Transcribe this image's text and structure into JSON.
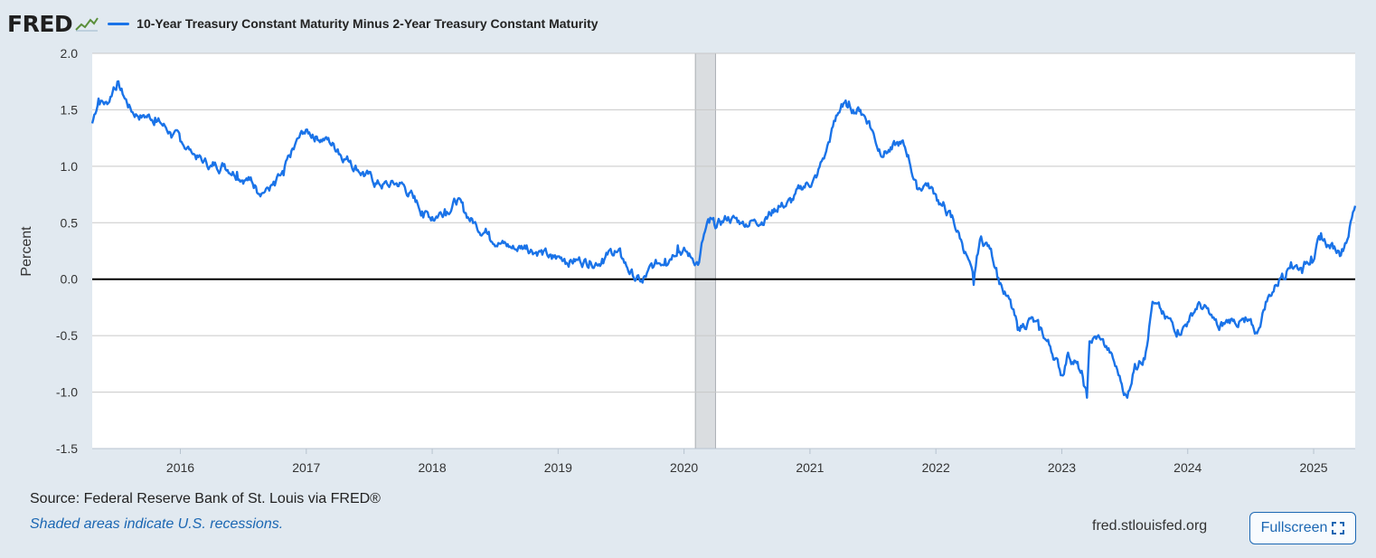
{
  "brand": {
    "logo_text": "FRED"
  },
  "legend": {
    "series_label": "10-Year Treasury Constant Maturity Minus 2-Year Treasury Constant Maturity"
  },
  "colors": {
    "series": "#1a73e8",
    "zero_line": "#000000",
    "recession": "#dadde0",
    "grid": "#c8c8c8",
    "background": "#e1e9f0",
    "link": "#1b67b3"
  },
  "footer": {
    "source": "Source: Federal Reserve Bank of St. Louis via FRED®",
    "recession_note": "Shaded areas indicate U.S. recessions.",
    "site": "fred.stlouisfed.org",
    "fullscreen_label": "Fullscreen"
  },
  "chart_data": {
    "type": "line",
    "ylabel": "Percent",
    "xlim": [
      2015.3,
      2025.33
    ],
    "ylim": [
      -1.5,
      2.0
    ],
    "x_ticks": [
      2016,
      2017,
      2018,
      2019,
      2020,
      2021,
      2022,
      2023,
      2024,
      2025
    ],
    "x_tick_labels": [
      "2016",
      "2017",
      "2018",
      "2019",
      "2020",
      "2021",
      "2022",
      "2023",
      "2024",
      "2025"
    ],
    "y_ticks": [
      -1.5,
      -1.0,
      -0.5,
      0.0,
      0.5,
      1.0,
      1.5,
      2.0
    ],
    "y_tick_labels": [
      "-1.5",
      "-1.0",
      "-0.5",
      "0.0",
      "0.5",
      "1.0",
      "1.5",
      "2.0"
    ],
    "grid": true,
    "zero_line": true,
    "recessions": [
      [
        2020.09,
        2020.25
      ]
    ],
    "series": [
      {
        "name": "10-Year Treasury Constant Maturity Minus 2-Year Treasury Constant Maturity",
        "x": [
          2015.3,
          2015.35,
          2015.42,
          2015.47,
          2015.5,
          2015.55,
          2015.62,
          2015.7,
          2015.8,
          2015.92,
          2016.0,
          2016.08,
          2016.17,
          2016.25,
          2016.35,
          2016.45,
          2016.55,
          2016.6,
          2016.68,
          2016.75,
          2016.82,
          2016.9,
          2016.98,
          2017.05,
          2017.15,
          2017.25,
          2017.35,
          2017.45,
          2017.55,
          2017.65,
          2017.75,
          2017.85,
          2017.92,
          2018.0,
          2018.1,
          2018.2,
          2018.25,
          2018.35,
          2018.45,
          2018.55,
          2018.65,
          2018.75,
          2018.85,
          2018.95,
          2019.05,
          2019.15,
          2019.25,
          2019.35,
          2019.45,
          2019.5,
          2019.55,
          2019.62,
          2019.67,
          2019.75,
          2019.85,
          2019.95,
          2020.05,
          2020.12,
          2020.15,
          2020.2,
          2020.25,
          2020.35,
          2020.45,
          2020.55,
          2020.65,
          2020.75,
          2020.85,
          2020.95,
          2021.05,
          2021.12,
          2021.2,
          2021.25,
          2021.3,
          2021.4,
          2021.47,
          2021.55,
          2021.65,
          2021.72,
          2021.78,
          2021.85,
          2021.92,
          2022.0,
          2022.05,
          2022.12,
          2022.2,
          2022.25,
          2022.3,
          2022.35,
          2022.42,
          2022.48,
          2022.52,
          2022.6,
          2022.65,
          2022.75,
          2022.82,
          2022.9,
          2022.95,
          2023.0,
          2023.05,
          2023.1,
          2023.15,
          2023.2,
          2023.22,
          2023.3,
          2023.38,
          2023.45,
          2023.52,
          2023.58,
          2023.65,
          2023.72,
          2023.82,
          2023.92,
          2024.0,
          2024.08,
          2024.17,
          2024.25,
          2024.35,
          2024.45,
          2024.55,
          2024.62,
          2024.7,
          2024.75,
          2024.82,
          2024.9,
          2024.98,
          2025.05,
          2025.12,
          2025.2,
          2025.25,
          2025.33
        ],
        "y": [
          1.38,
          1.6,
          1.55,
          1.7,
          1.75,
          1.62,
          1.48,
          1.45,
          1.43,
          1.3,
          1.22,
          1.15,
          1.05,
          1.0,
          1.02,
          0.95,
          0.88,
          0.82,
          0.8,
          0.83,
          0.92,
          1.15,
          1.3,
          1.28,
          1.25,
          1.15,
          1.05,
          0.95,
          0.85,
          0.83,
          0.85,
          0.72,
          0.6,
          0.55,
          0.62,
          0.7,
          0.6,
          0.48,
          0.42,
          0.32,
          0.27,
          0.3,
          0.25,
          0.18,
          0.18,
          0.17,
          0.16,
          0.18,
          0.25,
          0.2,
          0.1,
          0.0,
          -0.03,
          0.1,
          0.18,
          0.3,
          0.2,
          0.15,
          0.35,
          0.5,
          0.45,
          0.55,
          0.5,
          0.52,
          0.55,
          0.65,
          0.68,
          0.82,
          0.9,
          1.1,
          1.4,
          1.55,
          1.52,
          1.5,
          1.4,
          1.15,
          1.15,
          1.2,
          1.1,
          0.8,
          0.85,
          0.75,
          0.65,
          0.55,
          0.35,
          0.2,
          -0.05,
          0.35,
          0.3,
          0.1,
          -0.05,
          -0.25,
          -0.45,
          -0.35,
          -0.45,
          -0.58,
          -0.7,
          -0.85,
          -0.65,
          -0.72,
          -0.83,
          -1.05,
          -0.55,
          -0.52,
          -0.65,
          -0.85,
          -1.05,
          -0.75,
          -0.7,
          -0.2,
          -0.35,
          -0.45,
          -0.38,
          -0.22,
          -0.3,
          -0.45,
          -0.35,
          -0.38,
          -0.48,
          -0.2,
          -0.05,
          0.05,
          0.15,
          0.1,
          0.2,
          0.35,
          0.3,
          0.25,
          0.32,
          0.65
        ]
      }
    ]
  }
}
